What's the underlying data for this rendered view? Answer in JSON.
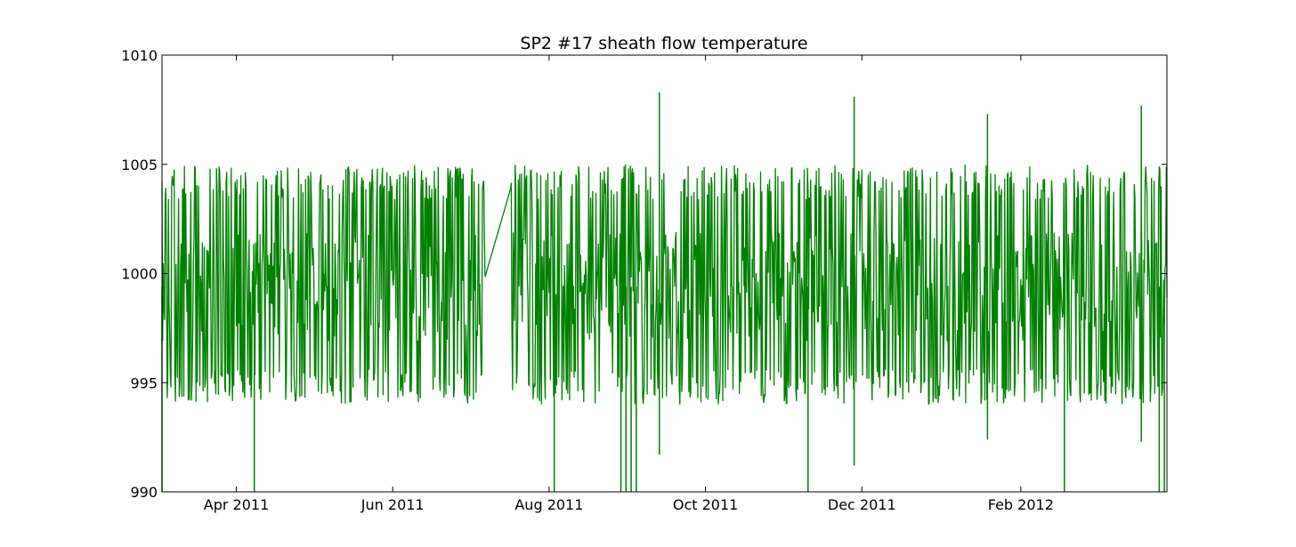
{
  "chart_data": {
    "type": "line",
    "title": "SP2 #17 sheath flow temperature",
    "xlabel": "",
    "ylabel": "",
    "xlim": [
      "2011-03-03",
      "2012-03-29"
    ],
    "ylim": [
      990,
      1010
    ],
    "yticks": [
      990,
      995,
      1000,
      1005,
      1010
    ],
    "xticks": [
      {
        "date": "2011-04-01",
        "label": "Apr 2011"
      },
      {
        "date": "2011-06-01",
        "label": "Jun 2011"
      },
      {
        "date": "2011-08-01",
        "label": "Aug 2011"
      },
      {
        "date": "2011-10-01",
        "label": "Oct 2011"
      },
      {
        "date": "2011-12-01",
        "label": "Dec 2011"
      },
      {
        "date": "2012-02-01",
        "label": "Feb 2012"
      }
    ],
    "grid": false,
    "color": "#008000",
    "oscillation": {
      "baseline": 999.4,
      "typical_min": 994,
      "typical_max": 1005
    },
    "data_gap": [
      "2011-07-07",
      "2011-07-17"
    ],
    "spikes": [
      {
        "date": "2011-03-03",
        "value": 990
      },
      {
        "date": "2011-04-08",
        "value": 990
      },
      {
        "date": "2011-08-03",
        "value": 990
      },
      {
        "date": "2011-08-29",
        "value": 990
      },
      {
        "date": "2011-08-31",
        "value": 990
      },
      {
        "date": "2011-09-02",
        "value": 990
      },
      {
        "date": "2011-09-04",
        "value": 990
      },
      {
        "date": "2011-09-13",
        "value": 1008.3
      },
      {
        "date": "2011-09-13",
        "value": 991.7
      },
      {
        "date": "2011-11-10",
        "value": 990
      },
      {
        "date": "2011-11-28",
        "value": 1008.1
      },
      {
        "date": "2011-11-28",
        "value": 991.2
      },
      {
        "date": "2012-01-19",
        "value": 1007.3
      },
      {
        "date": "2012-01-19",
        "value": 992.4
      },
      {
        "date": "2012-02-18",
        "value": 990
      },
      {
        "date": "2012-03-19",
        "value": 1007.7
      },
      {
        "date": "2012-03-19",
        "value": 992.3
      },
      {
        "date": "2012-03-26",
        "value": 990
      },
      {
        "date": "2012-03-28",
        "value": 990
      }
    ]
  }
}
